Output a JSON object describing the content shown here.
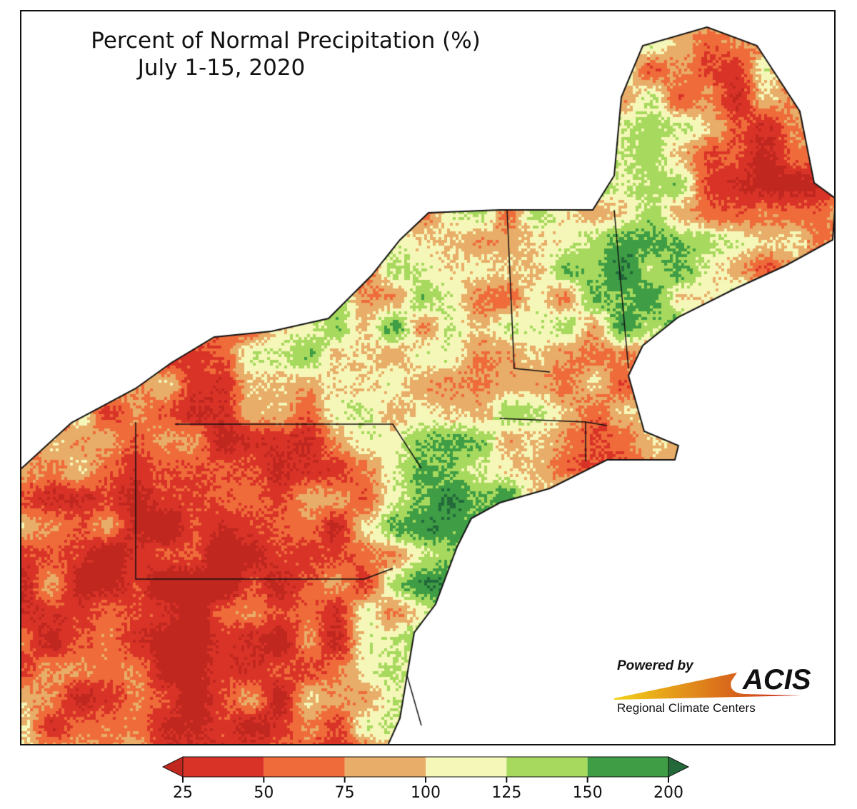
{
  "title": {
    "line1": "Percent of Normal Precipitation (%)",
    "line2": "July 1-15, 2020"
  },
  "legend": {
    "ticks": [
      "25",
      "50",
      "75",
      "100",
      "125",
      "150",
      "200"
    ],
    "bins": [
      {
        "range": "<25",
        "color": "#c0271f"
      },
      {
        "range": "25-50",
        "color": "#d93328"
      },
      {
        "range": "50-75",
        "color": "#ef6b3a"
      },
      {
        "range": "75-100",
        "color": "#e8ad68"
      },
      {
        "range": "100-125",
        "color": "#f5f7b8"
      },
      {
        "range": "125-150",
        "color": "#a7d95e"
      },
      {
        "range": "150-200",
        "color": "#3e9d45"
      },
      {
        "range": ">200",
        "color": "#23693a"
      }
    ]
  },
  "logo": {
    "powered_by": "Powered by",
    "brand": "ACIS",
    "subtitle": "Regional Climate Centers"
  }
}
